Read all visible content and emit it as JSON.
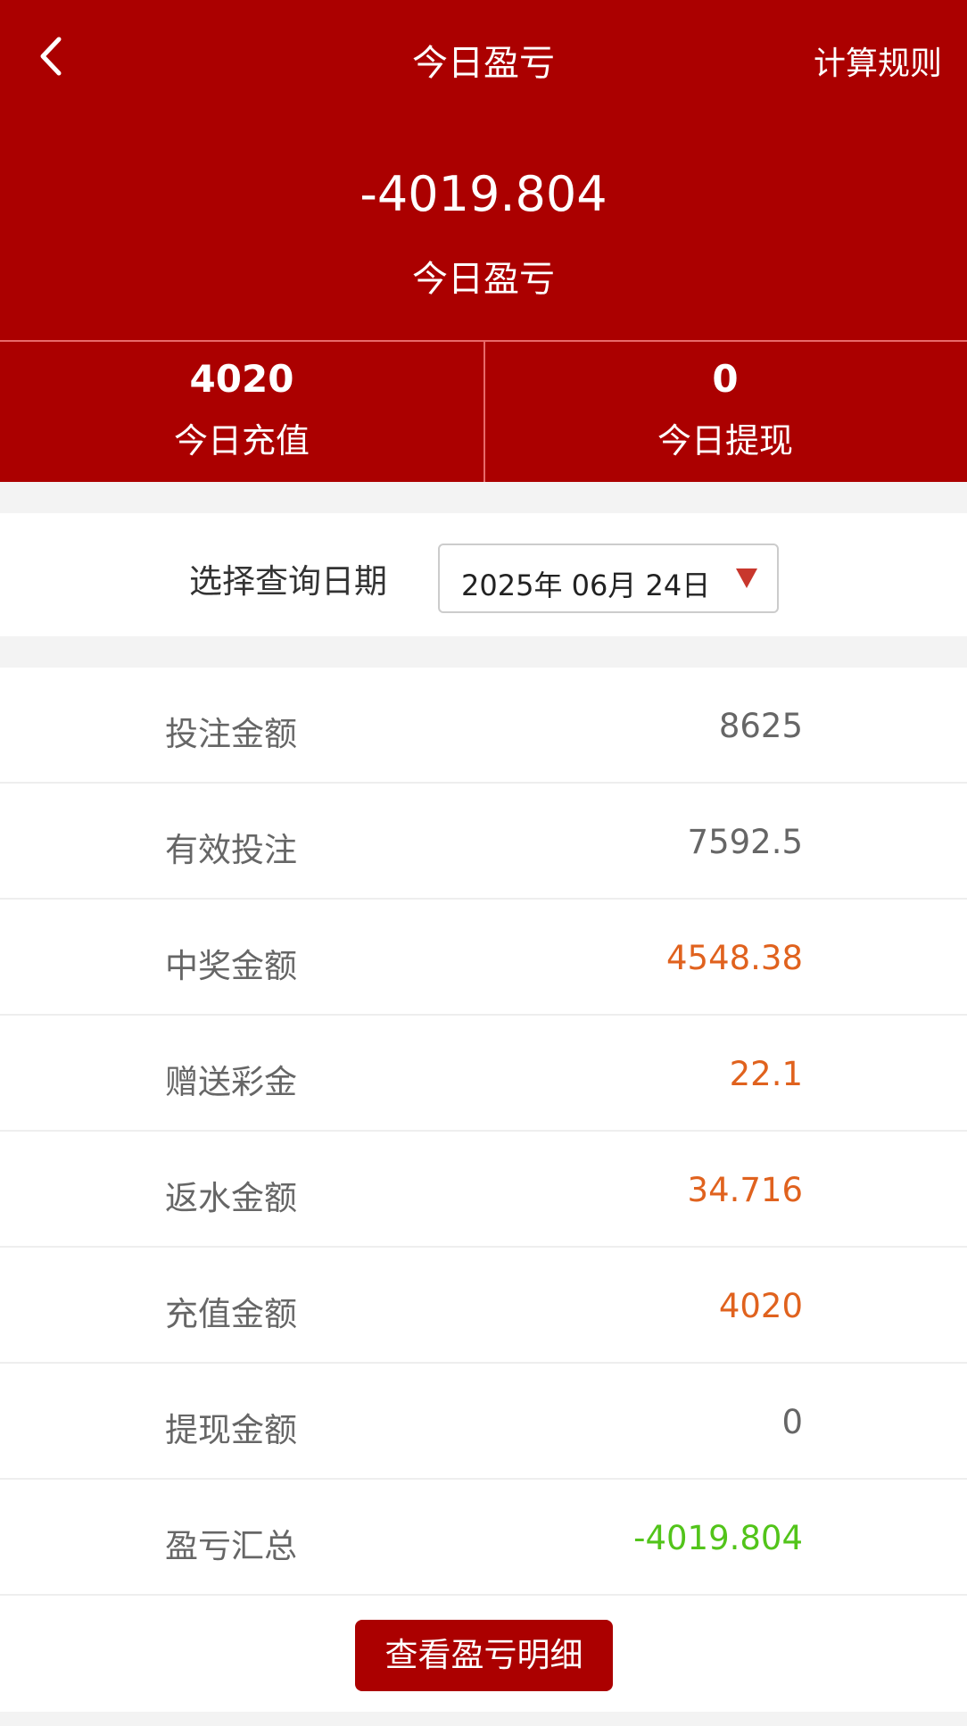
{
  "header": {
    "title": "今日盈亏",
    "rules_label": "计算规则",
    "profit": "-4019.804",
    "profit_label": "今日盈亏"
  },
  "stats": [
    {
      "value": "4020",
      "label": "今日充值"
    },
    {
      "value": "0",
      "label": "今日提现"
    }
  ],
  "date": {
    "label": "选择查询日期",
    "value": "2025年 06月 24日"
  },
  "rows": [
    {
      "label": "投注金额",
      "value": "8625",
      "color": "#666666"
    },
    {
      "label": "有效投注",
      "value": "7592.5",
      "color": "#666666"
    },
    {
      "label": "中奖金额",
      "value": "4548.38",
      "color": "#e0621e"
    },
    {
      "label": "赠送彩金",
      "value": "22.1",
      "color": "#e0621e"
    },
    {
      "label": "返水金额",
      "value": "34.716",
      "color": "#e0621e"
    },
    {
      "label": "充值金额",
      "value": "4020",
      "color": "#e0621e"
    },
    {
      "label": "提现金额",
      "value": "0",
      "color": "#666666"
    },
    {
      "label": "盈亏汇总",
      "value": "-4019.804",
      "color": "#52c41a"
    }
  ],
  "detail_button": "查看盈亏明细",
  "colors": {
    "brand": "#ab0000"
  }
}
